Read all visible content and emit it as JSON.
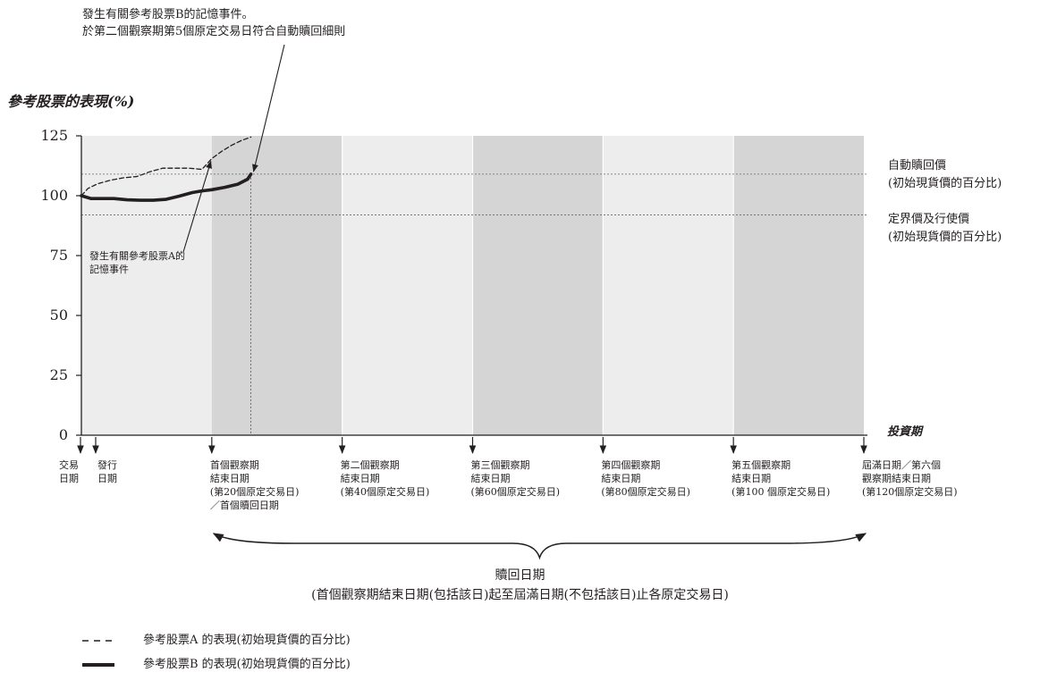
{
  "chart_data": {
    "type": "line",
    "ylabel": "參考股票的表現(%)",
    "xlabel": "投資期",
    "ylim": [
      0,
      125
    ],
    "yticks": [
      0,
      25,
      50,
      75,
      100,
      125
    ],
    "grid": false,
    "x_range": [
      0,
      120
    ],
    "observation_periods": [
      {
        "start": 20,
        "end": 40,
        "shaded": "dark"
      },
      {
        "start": 40,
        "end": 60,
        "shaded": "light"
      },
      {
        "start": 60,
        "end": 80,
        "shaded": "dark"
      },
      {
        "start": 80,
        "end": 100,
        "shaded": "light"
      },
      {
        "start": 100,
        "end": 120,
        "shaded": "dark"
      }
    ],
    "reference_lines": [
      {
        "value": 109,
        "label_line1": "自動贖回價",
        "label_line2": "(初始現貨價的百分比)"
      },
      {
        "value": 92,
        "label_line1": "定界價及行使價",
        "label_line2": "(初始現貨價的百分比)"
      }
    ],
    "series": [
      {
        "name": "參考股票A 的表現(初始現貨價的百分比)",
        "style": "dashed",
        "color": "#231f20",
        "x": [
          0,
          1,
          2.5,
          4.5,
          6.5,
          8.5,
          10.5,
          12.5,
          14.5,
          16.5,
          18.5,
          20,
          21.5,
          23,
          24.5,
          26
        ],
        "y": [
          100,
          103,
          105,
          106.5,
          107.5,
          108,
          110,
          111.5,
          111.5,
          111.5,
          111,
          115.5,
          118.5,
          121,
          123,
          124.5
        ]
      },
      {
        "name": "參考股票B 的表現(初始現貨價的百分比)",
        "style": "solid",
        "color": "#231f20",
        "x": [
          0,
          1.5,
          3,
          5,
          7,
          9,
          11,
          13,
          15,
          17,
          18.5,
          20,
          22,
          24,
          25.5,
          26
        ],
        "y": [
          100,
          98.8,
          98.8,
          98.8,
          98.3,
          98.1,
          98.1,
          98.5,
          99.8,
          101.3,
          102,
          102.5,
          103.5,
          104.8,
          106.9,
          109
        ]
      }
    ],
    "annotations": {
      "top_line1": "發生有關參考股票B的記憶事件。",
      "top_line2": "於第二個觀察期第5個原定交易日符合自動贖回細則",
      "stock_a_line1": "發生有關參考股票A的",
      "stock_a_line2": "記憶事件"
    },
    "x_markers": [
      {
        "x": -2,
        "lines": [
          "交易",
          "日期"
        ]
      },
      {
        "x": 0,
        "lines": [
          "發行",
          "日期"
        ]
      },
      {
        "x": 20,
        "lines": [
          "首個觀察期",
          "結束日期",
          "(第20個原定交易日)",
          "／首個贖回日期"
        ]
      },
      {
        "x": 40,
        "lines": [
          "第二個觀察期",
          "結束日期",
          "(第40個原定交易日)"
        ]
      },
      {
        "x": 60,
        "lines": [
          "第三個觀察期",
          "結束日期",
          "(第60個原定交易日)"
        ]
      },
      {
        "x": 80,
        "lines": [
          "第四個觀察期",
          "結束日期",
          "(第80個原定交易日)"
        ]
      },
      {
        "x": 100,
        "lines": [
          "第五個觀察期",
          "結束日期",
          "(第100 個原定交易日)"
        ]
      },
      {
        "x": 120,
        "lines": [
          "屆滿日期／第六個",
          "觀察期結束日期",
          "(第120個原定交易日)"
        ]
      }
    ],
    "redemption": {
      "line1": "贖回日期",
      "line2": "(首個觀察期結束日期(包括該日)起至屆滿日期(不包括該日)止各原定交易日)"
    }
  }
}
